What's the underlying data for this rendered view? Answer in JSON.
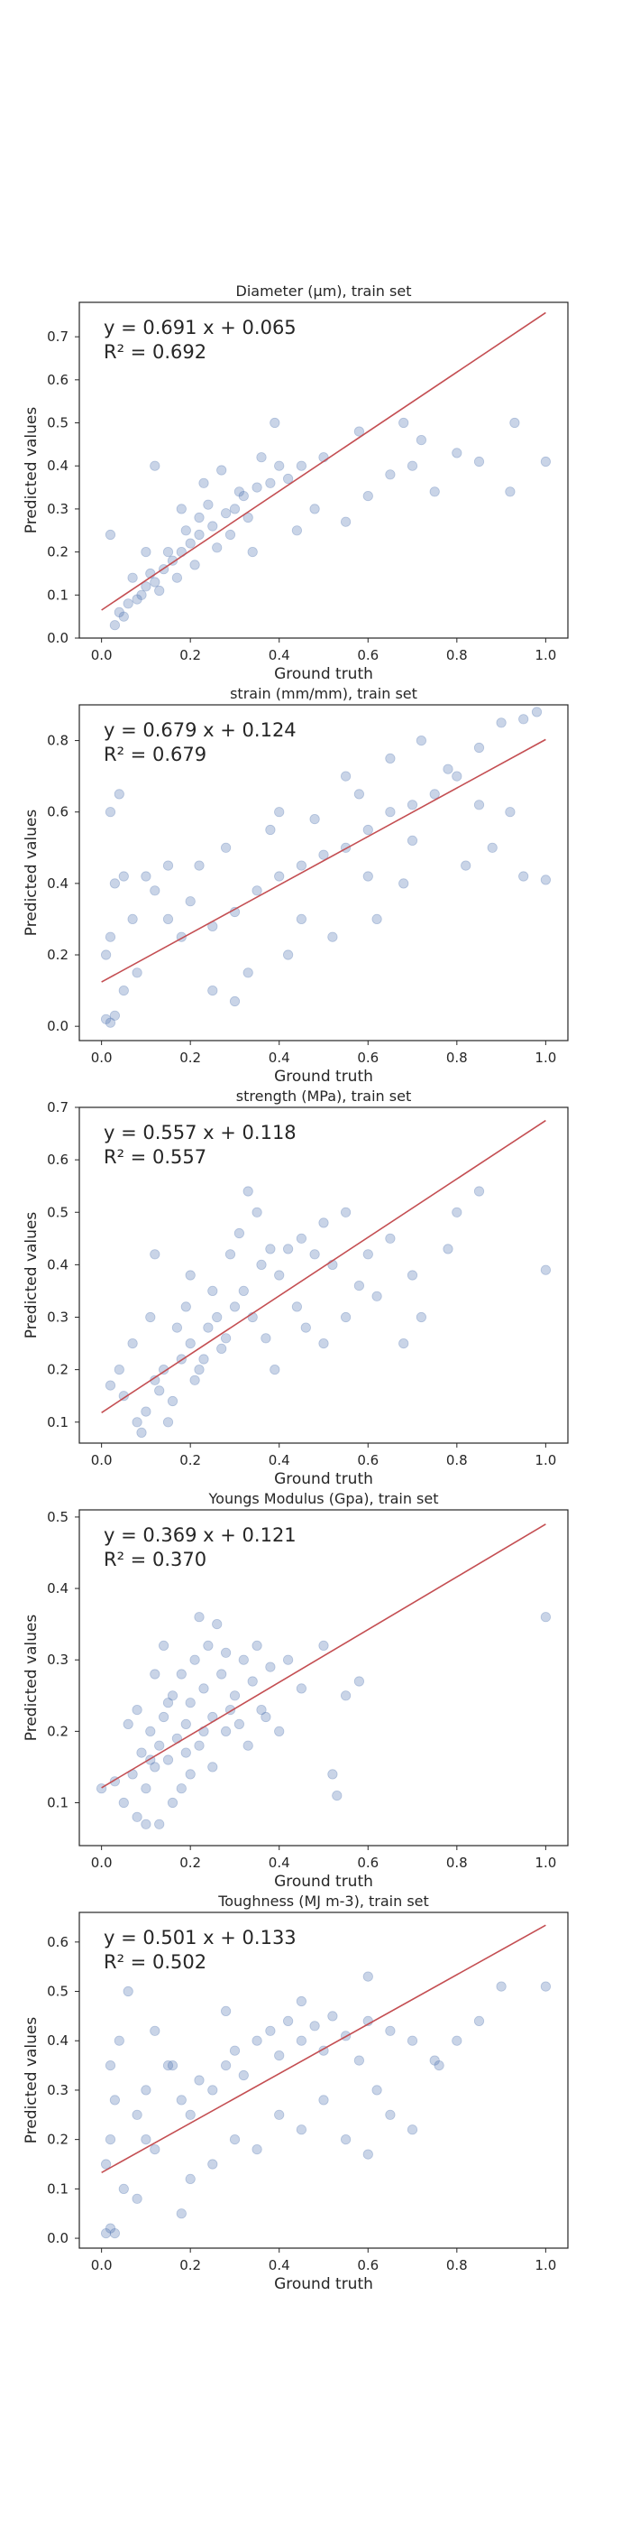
{
  "colors": {
    "points": "#4c72b0",
    "fit_line": "#c44e52",
    "frame": "#262626",
    "background": "#ffffff"
  },
  "chart_data": [
    {
      "type": "scatter",
      "title": "Diameter (μm), train set",
      "xlabel": "Ground truth",
      "ylabel": "Predicted values",
      "xlim": [
        -0.05,
        1.05
      ],
      "ylim": [
        0.0,
        0.78
      ],
      "xticks": [
        "0.0",
        "0.2",
        "0.4",
        "0.6",
        "0.8",
        "1.0"
      ],
      "yticks": [
        "0.0",
        "0.1",
        "0.2",
        "0.3",
        "0.4",
        "0.5",
        "0.6",
        "0.7"
      ],
      "equation": "y = 0.691 x + 0.065",
      "r2_label": "R² = 0.692",
      "fit": {
        "slope": 0.691,
        "intercept": 0.065,
        "x": [
          0.0,
          1.0
        ]
      },
      "points": [
        [
          0.05,
          0.05
        ],
        [
          0.08,
          0.09
        ],
        [
          0.1,
          0.12
        ],
        [
          0.12,
          0.13
        ],
        [
          0.14,
          0.16
        ],
        [
          0.16,
          0.18
        ],
        [
          0.18,
          0.2
        ],
        [
          0.2,
          0.22
        ],
        [
          0.22,
          0.24
        ],
        [
          0.25,
          0.26
        ],
        [
          0.28,
          0.29
        ],
        [
          0.3,
          0.3
        ],
        [
          0.32,
          0.33
        ],
        [
          0.35,
          0.35
        ],
        [
          0.38,
          0.36
        ],
        [
          0.4,
          0.4
        ],
        [
          0.42,
          0.37
        ],
        [
          0.45,
          0.4
        ],
        [
          0.5,
          0.42
        ],
        [
          0.6,
          0.33
        ],
        [
          0.65,
          0.38
        ],
        [
          0.7,
          0.4
        ],
        [
          0.75,
          0.34
        ],
        [
          0.85,
          0.41
        ],
        [
          0.93,
          0.5
        ],
        [
          1.0,
          0.41
        ],
        [
          0.04,
          0.06
        ],
        [
          0.06,
          0.08
        ],
        [
          0.09,
          0.1
        ],
        [
          0.11,
          0.15
        ],
        [
          0.13,
          0.11
        ],
        [
          0.15,
          0.2
        ],
        [
          0.17,
          0.14
        ],
        [
          0.19,
          0.25
        ],
        [
          0.21,
          0.17
        ],
        [
          0.24,
          0.31
        ],
        [
          0.26,
          0.21
        ],
        [
          0.29,
          0.24
        ],
        [
          0.33,
          0.28
        ],
        [
          0.36,
          0.42
        ],
        [
          0.39,
          0.5
        ],
        [
          0.02,
          0.24
        ],
        [
          0.03,
          0.03
        ],
        [
          0.07,
          0.14
        ],
        [
          0.23,
          0.36
        ],
        [
          0.27,
          0.39
        ],
        [
          0.31,
          0.34
        ],
        [
          0.48,
          0.3
        ],
        [
          0.55,
          0.27
        ],
        [
          0.58,
          0.48
        ],
        [
          0.68,
          0.5
        ],
        [
          0.72,
          0.46
        ],
        [
          0.8,
          0.43
        ],
        [
          0.92,
          0.34
        ],
        [
          0.12,
          0.4
        ],
        [
          0.18,
          0.3
        ],
        [
          0.22,
          0.28
        ],
        [
          0.34,
          0.2
        ],
        [
          0.44,
          0.25
        ],
        [
          0.1,
          0.2
        ]
      ]
    },
    {
      "type": "scatter",
      "title": "strain (mm/mm), train set",
      "xlabel": "Ground truth",
      "ylabel": "Predicted values",
      "xlim": [
        -0.05,
        1.05
      ],
      "ylim": [
        -0.04,
        0.9
      ],
      "xticks": [
        "0.0",
        "0.2",
        "0.4",
        "0.6",
        "0.8",
        "1.0"
      ],
      "yticks": [
        "0.0",
        "0.2",
        "0.4",
        "0.6",
        "0.8"
      ],
      "equation": "y = 0.679 x + 0.124",
      "r2_label": "R² = 0.679",
      "fit": {
        "slope": 0.679,
        "intercept": 0.124,
        "x": [
          0.0,
          1.0
        ]
      },
      "points": [
        [
          0.01,
          0.02
        ],
        [
          0.02,
          0.01
        ],
        [
          0.03,
          0.03
        ],
        [
          0.01,
          0.2
        ],
        [
          0.02,
          0.25
        ],
        [
          0.03,
          0.4
        ],
        [
          0.02,
          0.6
        ],
        [
          0.04,
          0.65
        ],
        [
          0.05,
          0.1
        ],
        [
          0.08,
          0.15
        ],
        [
          0.1,
          0.42
        ],
        [
          0.15,
          0.3
        ],
        [
          0.2,
          0.35
        ],
        [
          0.25,
          0.28
        ],
        [
          0.3,
          0.32
        ],
        [
          0.35,
          0.38
        ],
        [
          0.4,
          0.42
        ],
        [
          0.45,
          0.45
        ],
        [
          0.5,
          0.48
        ],
        [
          0.55,
          0.5
        ],
        [
          0.6,
          0.55
        ],
        [
          0.65,
          0.6
        ],
        [
          0.7,
          0.62
        ],
        [
          0.75,
          0.65
        ],
        [
          0.8,
          0.7
        ],
        [
          0.85,
          0.78
        ],
        [
          0.9,
          0.85
        ],
        [
          0.95,
          0.86
        ],
        [
          0.98,
          0.88
        ],
        [
          0.92,
          0.6
        ],
        [
          0.88,
          0.5
        ],
        [
          0.82,
          0.45
        ],
        [
          0.78,
          0.72
        ],
        [
          0.72,
          0.8
        ],
        [
          0.68,
          0.4
        ],
        [
          0.62,
          0.3
        ],
        [
          0.58,
          0.65
        ],
        [
          0.52,
          0.25
        ],
        [
          0.48,
          0.58
        ],
        [
          0.42,
          0.2
        ],
        [
          0.38,
          0.55
        ],
        [
          0.33,
          0.15
        ],
        [
          0.28,
          0.5
        ],
        [
          0.22,
          0.45
        ],
        [
          0.18,
          0.25
        ],
        [
          0.12,
          0.38
        ],
        [
          0.07,
          0.3
        ],
        [
          0.25,
          0.1
        ],
        [
          0.45,
          0.3
        ],
        [
          0.6,
          0.42
        ],
        [
          0.7,
          0.52
        ],
        [
          0.85,
          0.62
        ],
        [
          1.0,
          0.41
        ],
        [
          0.95,
          0.42
        ],
        [
          0.4,
          0.6
        ],
        [
          0.55,
          0.7
        ],
        [
          0.3,
          0.07
        ],
        [
          0.15,
          0.45
        ],
        [
          0.05,
          0.42
        ],
        [
          0.65,
          0.75
        ]
      ]
    },
    {
      "type": "scatter",
      "title": "strength (MPa), train set",
      "xlabel": "Ground truth",
      "ylabel": "Predicted values",
      "xlim": [
        -0.05,
        1.05
      ],
      "ylim": [
        0.06,
        0.7
      ],
      "xticks": [
        "0.0",
        "0.2",
        "0.4",
        "0.6",
        "0.8",
        "1.0"
      ],
      "yticks": [
        "0.1",
        "0.2",
        "0.3",
        "0.4",
        "0.5",
        "0.6",
        "0.7"
      ],
      "equation": "y = 0.557 x + 0.118",
      "r2_label": "R² = 0.557",
      "fit": {
        "slope": 0.557,
        "intercept": 0.118,
        "x": [
          0.0,
          1.0
        ]
      },
      "points": [
        [
          0.05,
          0.15
        ],
        [
          0.08,
          0.1
        ],
        [
          0.1,
          0.12
        ],
        [
          0.12,
          0.18
        ],
        [
          0.14,
          0.2
        ],
        [
          0.16,
          0.14
        ],
        [
          0.18,
          0.22
        ],
        [
          0.2,
          0.25
        ],
        [
          0.22,
          0.2
        ],
        [
          0.24,
          0.28
        ],
        [
          0.26,
          0.3
        ],
        [
          0.28,
          0.26
        ],
        [
          0.3,
          0.32
        ],
        [
          0.32,
          0.35
        ],
        [
          0.34,
          0.3
        ],
        [
          0.36,
          0.4
        ],
        [
          0.38,
          0.43
        ],
        [
          0.4,
          0.38
        ],
        [
          0.42,
          0.43
        ],
        [
          0.45,
          0.45
        ],
        [
          0.48,
          0.42
        ],
        [
          0.5,
          0.48
        ],
        [
          0.52,
          0.4
        ],
        [
          0.55,
          0.5
        ],
        [
          0.58,
          0.36
        ],
        [
          0.6,
          0.42
        ],
        [
          0.65,
          0.45
        ],
        [
          0.7,
          0.38
        ],
        [
          0.72,
          0.3
        ],
        [
          0.78,
          0.43
        ],
        [
          0.8,
          0.5
        ],
        [
          0.85,
          0.54
        ],
        [
          1.0,
          0.39
        ],
        [
          0.02,
          0.17
        ],
        [
          0.04,
          0.2
        ],
        [
          0.07,
          0.25
        ],
        [
          0.09,
          0.08
        ],
        [
          0.11,
          0.3
        ],
        [
          0.13,
          0.16
        ],
        [
          0.15,
          0.1
        ],
        [
          0.17,
          0.28
        ],
        [
          0.19,
          0.32
        ],
        [
          0.21,
          0.18
        ],
        [
          0.23,
          0.22
        ],
        [
          0.25,
          0.35
        ],
        [
          0.27,
          0.24
        ],
        [
          0.29,
          0.42
        ],
        [
          0.31,
          0.46
        ],
        [
          0.33,
          0.54
        ],
        [
          0.35,
          0.5
        ],
        [
          0.37,
          0.26
        ],
        [
          0.39,
          0.2
        ],
        [
          0.44,
          0.32
        ],
        [
          0.46,
          0.28
        ],
        [
          0.5,
          0.25
        ],
        [
          0.55,
          0.3
        ],
        [
          0.62,
          0.34
        ],
        [
          0.68,
          0.25
        ],
        [
          0.12,
          0.42
        ],
        [
          0.2,
          0.38
        ]
      ]
    },
    {
      "type": "scatter",
      "title": "Youngs Modulus (Gpa), train set",
      "xlabel": "Ground truth",
      "ylabel": "Predicted values",
      "xlim": [
        -0.05,
        1.05
      ],
      "ylim": [
        0.04,
        0.51
      ],
      "xticks": [
        "0.0",
        "0.2",
        "0.4",
        "0.6",
        "0.8",
        "1.0"
      ],
      "yticks": [
        "0.1",
        "0.2",
        "0.3",
        "0.4",
        "0.5"
      ],
      "equation": "y = 0.369 x + 0.121",
      "r2_label": "R² = 0.370",
      "fit": {
        "slope": 0.369,
        "intercept": 0.121,
        "x": [
          0.0,
          1.0
        ]
      },
      "points": [
        [
          0.0,
          0.12
        ],
        [
          0.03,
          0.13
        ],
        [
          0.05,
          0.1
        ],
        [
          0.07,
          0.14
        ],
        [
          0.08,
          0.08
        ],
        [
          0.09,
          0.17
        ],
        [
          0.1,
          0.12
        ],
        [
          0.11,
          0.2
        ],
        [
          0.12,
          0.15
        ],
        [
          0.13,
          0.18
        ],
        [
          0.14,
          0.22
        ],
        [
          0.15,
          0.16
        ],
        [
          0.16,
          0.25
        ],
        [
          0.17,
          0.19
        ],
        [
          0.18,
          0.28
        ],
        [
          0.19,
          0.21
        ],
        [
          0.2,
          0.24
        ],
        [
          0.21,
          0.3
        ],
        [
          0.22,
          0.18
        ],
        [
          0.23,
          0.26
        ],
        [
          0.24,
          0.32
        ],
        [
          0.25,
          0.22
        ],
        [
          0.26,
          0.35
        ],
        [
          0.27,
          0.28
        ],
        [
          0.28,
          0.2
        ],
        [
          0.3,
          0.25
        ],
        [
          0.32,
          0.3
        ],
        [
          0.34,
          0.27
        ],
        [
          0.36,
          0.23
        ],
        [
          0.38,
          0.29
        ],
        [
          0.4,
          0.2
        ],
        [
          0.42,
          0.3
        ],
        [
          0.45,
          0.26
        ],
        [
          0.5,
          0.32
        ],
        [
          0.55,
          0.25
        ],
        [
          0.58,
          0.27
        ],
        [
          0.52,
          0.14
        ],
        [
          0.53,
          0.11
        ],
        [
          1.0,
          0.36
        ],
        [
          0.06,
          0.21
        ],
        [
          0.08,
          0.23
        ],
        [
          0.12,
          0.28
        ],
        [
          0.14,
          0.32
        ],
        [
          0.16,
          0.1
        ],
        [
          0.18,
          0.12
        ],
        [
          0.2,
          0.14
        ],
        [
          0.22,
          0.36
        ],
        [
          0.1,
          0.07
        ],
        [
          0.13,
          0.07
        ],
        [
          0.25,
          0.15
        ],
        [
          0.28,
          0.31
        ],
        [
          0.31,
          0.21
        ],
        [
          0.33,
          0.18
        ],
        [
          0.35,
          0.32
        ],
        [
          0.11,
          0.16
        ],
        [
          0.15,
          0.24
        ],
        [
          0.19,
          0.17
        ],
        [
          0.23,
          0.2
        ],
        [
          0.29,
          0.23
        ],
        [
          0.37,
          0.22
        ]
      ]
    },
    {
      "type": "scatter",
      "title": "Toughness (MJ m-3), train set",
      "xlabel": "Ground truth",
      "ylabel": "Predicted values",
      "xlim": [
        -0.05,
        1.05
      ],
      "ylim": [
        -0.02,
        0.66
      ],
      "xticks": [
        "0.0",
        "0.2",
        "0.4",
        "0.6",
        "0.8",
        "1.0"
      ],
      "yticks": [
        "0.0",
        "0.1",
        "0.2",
        "0.3",
        "0.4",
        "0.5",
        "0.6"
      ],
      "equation": "y = 0.501 x + 0.133",
      "r2_label": "R² = 0.502",
      "fit": {
        "slope": 0.501,
        "intercept": 0.133,
        "x": [
          0.0,
          1.0
        ]
      },
      "points": [
        [
          0.01,
          0.01
        ],
        [
          0.02,
          0.02
        ],
        [
          0.03,
          0.01
        ],
        [
          0.01,
          0.15
        ],
        [
          0.02,
          0.2
        ],
        [
          0.03,
          0.28
        ],
        [
          0.02,
          0.35
        ],
        [
          0.04,
          0.4
        ],
        [
          0.05,
          0.1
        ],
        [
          0.06,
          0.5
        ],
        [
          0.08,
          0.25
        ],
        [
          0.1,
          0.3
        ],
        [
          0.12,
          0.18
        ],
        [
          0.15,
          0.35
        ],
        [
          0.18,
          0.28
        ],
        [
          0.2,
          0.25
        ],
        [
          0.22,
          0.32
        ],
        [
          0.25,
          0.3
        ],
        [
          0.28,
          0.35
        ],
        [
          0.3,
          0.38
        ],
        [
          0.32,
          0.33
        ],
        [
          0.35,
          0.4
        ],
        [
          0.38,
          0.42
        ],
        [
          0.4,
          0.37
        ],
        [
          0.42,
          0.44
        ],
        [
          0.45,
          0.4
        ],
        [
          0.48,
          0.43
        ],
        [
          0.5,
          0.38
        ],
        [
          0.52,
          0.45
        ],
        [
          0.55,
          0.41
        ],
        [
          0.58,
          0.36
        ],
        [
          0.6,
          0.44
        ],
        [
          0.62,
          0.3
        ],
        [
          0.65,
          0.42
        ],
        [
          0.7,
          0.4
        ],
        [
          0.75,
          0.36
        ],
        [
          0.76,
          0.35
        ],
        [
          0.8,
          0.4
        ],
        [
          0.85,
          0.44
        ],
        [
          0.9,
          0.51
        ],
        [
          1.0,
          0.51
        ],
        [
          0.16,
          0.35
        ],
        [
          0.2,
          0.12
        ],
        [
          0.25,
          0.15
        ],
        [
          0.3,
          0.2
        ],
        [
          0.35,
          0.18
        ],
        [
          0.4,
          0.25
        ],
        [
          0.45,
          0.22
        ],
        [
          0.5,
          0.28
        ],
        [
          0.55,
          0.2
        ],
        [
          0.6,
          0.17
        ],
        [
          0.65,
          0.25
        ],
        [
          0.7,
          0.22
        ],
        [
          0.12,
          0.42
        ],
        [
          0.18,
          0.05
        ],
        [
          0.08,
          0.08
        ],
        [
          0.28,
          0.46
        ],
        [
          0.45,
          0.48
        ],
        [
          0.6,
          0.53
        ],
        [
          0.1,
          0.2
        ]
      ]
    }
  ]
}
